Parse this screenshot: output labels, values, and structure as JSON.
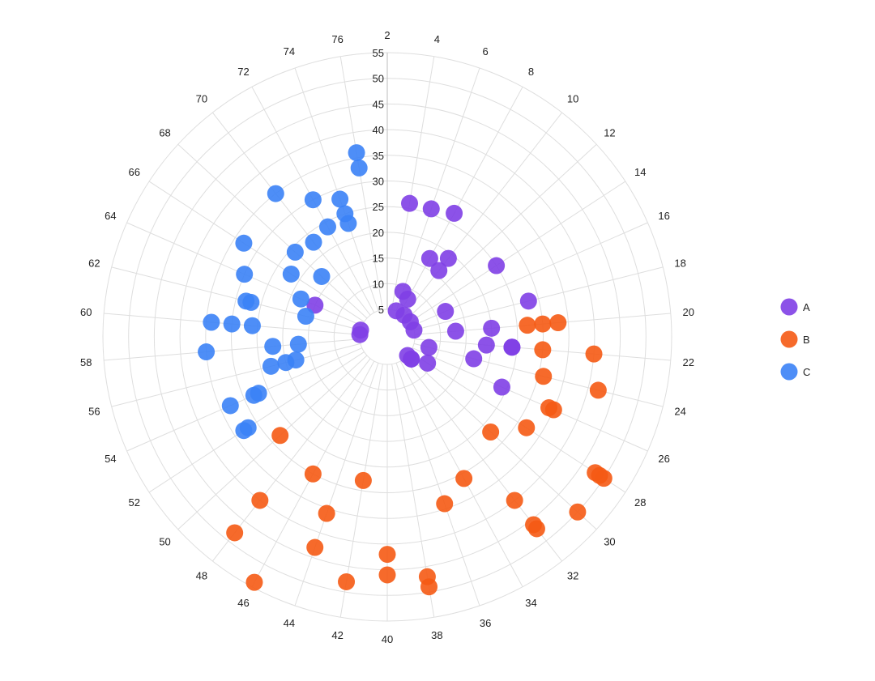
{
  "chart_data": {
    "type": "scatter",
    "subtype": "polar",
    "title": "",
    "angular_axis": {
      "categories": [
        2,
        4,
        6,
        8,
        10,
        12,
        14,
        16,
        18,
        20,
        22,
        24,
        26,
        28,
        30,
        32,
        34,
        36,
        38,
        40,
        42,
        44,
        46,
        48,
        50,
        52,
        54,
        56,
        58,
        60,
        62,
        64,
        66,
        68,
        70,
        72,
        74,
        76
      ],
      "direction": "clockwise",
      "start": "top"
    },
    "radial_axis": {
      "range": [
        5,
        55
      ],
      "ticks": [
        5,
        10,
        15,
        20,
        25,
        30,
        35,
        40,
        45,
        50,
        55
      ]
    },
    "grid": true,
    "legend": {
      "position": "right"
    },
    "series": [
      {
        "name": "A",
        "color": "#7f3fe6",
        "points": [
          {
            "theta": 4,
            "r": 26
          },
          {
            "theta": 6,
            "r": 26
          },
          {
            "theta": 8,
            "r": 27
          },
          {
            "theta": 10,
            "r": 19
          },
          {
            "theta": 14,
            "r": 25
          },
          {
            "theta": 16,
            "r": 12
          },
          {
            "theta": 18,
            "r": 28
          },
          {
            "theta": 20,
            "r": 20
          },
          {
            "theta": 8,
            "r": 17
          },
          {
            "theta": 6,
            "r": 9
          },
          {
            "theta": 8,
            "r": 8
          },
          {
            "theta": 10,
            "r": 16
          },
          {
            "theta": 22,
            "r": 24
          },
          {
            "theta": 20,
            "r": 13
          },
          {
            "theta": 22,
            "r": 19
          },
          {
            "theta": 22,
            "r": 24
          },
          {
            "theta": 24,
            "r": 17
          },
          {
            "theta": 26,
            "r": 24
          },
          {
            "theta": 24,
            "r": 8
          },
          {
            "theta": 28,
            "r": 9
          },
          {
            "theta": 30,
            "r": 6
          },
          {
            "theta": 30,
            "r": 6
          },
          {
            "theta": 30,
            "r": 5
          },
          {
            "theta": 6,
            "r": 5
          },
          {
            "theta": 10,
            "r": 5
          },
          {
            "theta": 14,
            "r": 5
          },
          {
            "theta": 18,
            "r": 5
          },
          {
            "theta": 60,
            "r": 5
          },
          {
            "theta": 64,
            "r": 15
          },
          {
            "theta": 62,
            "r": 5
          }
        ]
      },
      {
        "name": "B",
        "color": "#f55a14",
        "points": [
          {
            "theta": 20,
            "r": 27
          },
          {
            "theta": 20,
            "r": 30
          },
          {
            "theta": 20,
            "r": 33
          },
          {
            "theta": 22,
            "r": 40
          },
          {
            "theta": 22,
            "r": 30
          },
          {
            "theta": 24,
            "r": 31
          },
          {
            "theta": 24,
            "r": 42
          },
          {
            "theta": 26,
            "r": 34
          },
          {
            "theta": 26,
            "r": 35
          },
          {
            "theta": 28,
            "r": 48
          },
          {
            "theta": 28,
            "r": 49
          },
          {
            "theta": 28,
            "r": 50
          },
          {
            "theta": 28,
            "r": 32
          },
          {
            "theta": 30,
            "r": 50
          },
          {
            "theta": 30,
            "r": 27
          },
          {
            "theta": 32,
            "r": 46
          },
          {
            "theta": 32,
            "r": 47
          },
          {
            "theta": 32,
            "r": 40
          },
          {
            "theta": 34,
            "r": 31
          },
          {
            "theta": 36,
            "r": 34
          },
          {
            "theta": 38,
            "r": 47
          },
          {
            "theta": 38,
            "r": 49
          },
          {
            "theta": 40,
            "r": 46
          },
          {
            "theta": 40,
            "r": 42
          },
          {
            "theta": 42,
            "r": 48
          },
          {
            "theta": 42,
            "r": 28
          },
          {
            "theta": 44,
            "r": 43
          },
          {
            "theta": 44,
            "r": 36
          },
          {
            "theta": 46,
            "r": 54
          },
          {
            "theta": 46,
            "r": 30
          },
          {
            "theta": 48,
            "r": 48
          },
          {
            "theta": 48,
            "r": 40
          },
          {
            "theta": 50,
            "r": 28
          }
        ]
      },
      {
        "name": "C",
        "color": "#3b82f6",
        "points": [
          {
            "theta": 76,
            "r": 36
          },
          {
            "theta": 76,
            "r": 33
          },
          {
            "theta": 74,
            "r": 28
          },
          {
            "theta": 74,
            "r": 23
          },
          {
            "theta": 72,
            "r": 30
          },
          {
            "theta": 72,
            "r": 24
          },
          {
            "theta": 70,
            "r": 35
          },
          {
            "theta": 70,
            "r": 23
          },
          {
            "theta": 68,
            "r": 24
          },
          {
            "theta": 68,
            "r": 17
          },
          {
            "theta": 66,
            "r": 33
          },
          {
            "theta": 66,
            "r": 22
          },
          {
            "theta": 64,
            "r": 18
          },
          {
            "theta": 64,
            "r": 30
          },
          {
            "theta": 62,
            "r": 28
          },
          {
            "theta": 62,
            "r": 27
          },
          {
            "theta": 62,
            "r": 16
          },
          {
            "theta": 60,
            "r": 30
          },
          {
            "theta": 60,
            "r": 34
          },
          {
            "theta": 58,
            "r": 35
          },
          {
            "theta": 58,
            "r": 22
          },
          {
            "theta": 58,
            "r": 17
          },
          {
            "theta": 56,
            "r": 18
          },
          {
            "theta": 56,
            "r": 20
          },
          {
            "theta": 56,
            "r": 23
          },
          {
            "theta": 54,
            "r": 28
          },
          {
            "theta": 54,
            "r": 27
          },
          {
            "theta": 54,
            "r": 33
          },
          {
            "theta": 52,
            "r": 32
          },
          {
            "theta": 52,
            "r": 33
          },
          {
            "theta": 74,
            "r": 25
          },
          {
            "theta": 60,
            "r": 26
          }
        ]
      }
    ]
  }
}
